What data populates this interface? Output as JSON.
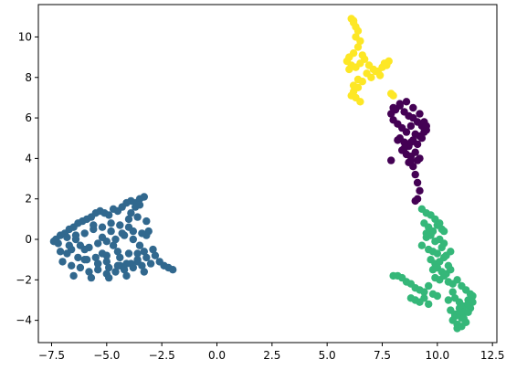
{
  "chart_data": {
    "type": "scatter",
    "title": "",
    "xlabel": "",
    "ylabel": "",
    "xlim": [
      -8.1,
      12.7
    ],
    "ylim": [
      -5.1,
      11.6
    ],
    "x_ticks": [
      -7.5,
      -5.0,
      -2.5,
      0.0,
      2.5,
      5.0,
      7.5,
      10.0,
      12.5
    ],
    "x_tick_labels": [
      "−7.5",
      "−5.0",
      "−2.5",
      "0.0",
      "2.5",
      "5.0",
      "7.5",
      "10.0",
      "12.5"
    ],
    "y_ticks": [
      -4,
      -2,
      0,
      2,
      4,
      6,
      8,
      10
    ],
    "y_tick_labels": [
      "−4",
      "−2",
      "0",
      "2",
      "4",
      "6",
      "8",
      "10"
    ],
    "grid": false,
    "legend": "none",
    "marker_size_pt": 6,
    "series": [
      {
        "color": "#31688e",
        "x": [
          -7.3,
          -7.1,
          -6.9,
          -6.7,
          -6.5,
          -6.3,
          -6.1,
          -5.9,
          -5.7,
          -5.5,
          -5.3,
          -5.1,
          -4.9,
          -4.7,
          -4.5,
          -4.3,
          -4.1,
          -3.9,
          -3.7,
          -3.5,
          -3.3,
          -3.1,
          -7.2,
          -6.8,
          -6.4,
          -6.0,
          -5.6,
          -5.2,
          -4.8,
          -4.4,
          -4.0,
          -3.6,
          -3.2,
          -6.6,
          -6.2,
          -5.8,
          -5.4,
          -5.0,
          -4.6,
          -4.2,
          -3.8,
          -3.4,
          -6.0,
          -5.5,
          -5.0,
          -4.5,
          -4.0,
          -3.5,
          -5.4,
          -4.9,
          -4.4,
          -3.9,
          -3.6,
          -3.3,
          -3.9,
          -3.7,
          -3.5,
          -7.0,
          -6.6,
          -6.2,
          -5.8,
          -5.4,
          -5.0,
          -4.6,
          -4.2,
          -3.8,
          -3.4,
          -3.0,
          -2.8,
          -2.6,
          -2.4,
          -2.2,
          -2.0,
          -6.8,
          -6.3,
          -5.9,
          -5.4,
          -5.0,
          -4.5,
          -4.1,
          -3.6,
          -3.2,
          -2.9,
          -7.4,
          -7.1,
          -6.7,
          -6.4,
          -6.0,
          -5.6,
          -5.2,
          -4.8,
          -4.4,
          -4.0,
          -3.6,
          -3.2,
          -6.5,
          -5.7,
          -4.9,
          -4.1,
          -3.3,
          -5.2,
          -4.7,
          -4.3,
          -3.8
        ],
        "y": [
          0.0,
          0.2,
          0.3,
          0.5,
          0.6,
          0.8,
          0.9,
          1.0,
          1.1,
          1.3,
          1.4,
          1.3,
          1.2,
          1.5,
          1.4,
          1.6,
          1.8,
          1.9,
          1.8,
          2.0,
          2.1,
          0.4,
          -0.2,
          0.1,
          0.0,
          0.3,
          0.5,
          0.6,
          0.8,
          0.7,
          1.0,
          1.1,
          0.2,
          -0.5,
          -0.3,
          -0.4,
          -0.2,
          -0.1,
          0.0,
          0.2,
          0.4,
          0.3,
          -1.0,
          -0.9,
          -0.8,
          -0.6,
          -0.7,
          -0.3,
          -1.2,
          -1.4,
          -1.3,
          -1.2,
          -1.0,
          -0.6,
          1.3,
          1.6,
          1.7,
          -1.1,
          -1.3,
          -1.4,
          -1.6,
          -1.5,
          -1.7,
          -1.6,
          -1.5,
          -1.4,
          -1.3,
          -1.2,
          -0.8,
          -1.1,
          -1.3,
          -1.4,
          -1.5,
          -0.7,
          -0.9,
          -1.0,
          -1.2,
          -1.1,
          -1.3,
          -1.2,
          -1.1,
          -0.9,
          -0.5,
          -0.1,
          -0.6,
          -0.3,
          0.2,
          -0.5,
          0.7,
          -0.7,
          0.4,
          -0.9,
          0.6,
          -0.7,
          0.9,
          -1.8,
          -1.9,
          -1.9,
          -1.8,
          -1.6,
          0.1,
          -0.3,
          0.3,
          0.0
        ]
      },
      {
        "color": "#440154",
        "x": [
          7.9,
          8.1,
          8.3,
          8.5,
          8.7,
          8.9,
          9.1,
          9.3,
          9.5,
          8.0,
          8.2,
          8.4,
          8.6,
          8.8,
          9.0,
          9.2,
          9.4,
          8.3,
          8.5,
          8.7,
          8.9,
          9.1,
          9.3,
          8.4,
          8.6,
          8.8,
          9.0,
          9.2,
          8.7,
          8.9,
          9.1,
          8.0,
          8.3,
          8.6,
          8.9,
          9.2,
          9.0,
          9.1,
          9.2,
          9.1,
          9.0,
          8.2,
          8.5,
          8.8,
          9.4,
          9.5,
          8.8,
          7.9
        ],
        "y": [
          6.2,
          6.4,
          6.6,
          6.3,
          6.1,
          6.0,
          5.8,
          5.6,
          5.4,
          5.9,
          5.7,
          5.5,
          5.3,
          5.6,
          5.2,
          5.1,
          5.3,
          5.0,
          4.8,
          4.6,
          4.9,
          4.7,
          5.0,
          4.4,
          4.2,
          4.1,
          4.3,
          4.0,
          3.8,
          3.6,
          3.9,
          6.5,
          6.7,
          6.8,
          6.5,
          6.2,
          3.2,
          2.8,
          2.4,
          2.0,
          1.9,
          4.9,
          4.5,
          3.9,
          5.8,
          5.6,
          4.8,
          3.9
        ]
      },
      {
        "color": "#35b779",
        "x": [
          9.3,
          9.5,
          9.7,
          9.9,
          10.1,
          9.4,
          9.6,
          9.8,
          10.0,
          10.2,
          9.5,
          9.7,
          9.9,
          10.1,
          10.3,
          9.6,
          9.8,
          10.0,
          10.2,
          10.4,
          9.7,
          9.9,
          10.1,
          10.3,
          10.5,
          9.8,
          10.0,
          10.2,
          10.4,
          10.6,
          9.9,
          10.1,
          10.3,
          10.5,
          10.7,
          10.9,
          11.1,
          11.3,
          11.5,
          8.8,
          9.0,
          9.2,
          9.4,
          9.6,
          9.8,
          10.0,
          8.2,
          8.4,
          8.6,
          8.8,
          9.0,
          9.2,
          9.4,
          9.6,
          10.8,
          11.0,
          11.2,
          11.4,
          11.6,
          10.6,
          10.8,
          11.0,
          11.2,
          11.4,
          10.7,
          10.9,
          11.1,
          11.3,
          10.9,
          11.1,
          10.8,
          11.0,
          11.2,
          10.5,
          10.7,
          11.5,
          11.6,
          11.4,
          8.0,
          9.3,
          9.5,
          10.3,
          10.6
        ],
        "y": [
          1.5,
          1.3,
          1.2,
          1.0,
          0.8,
          0.8,
          0.6,
          0.4,
          0.7,
          0.5,
          0.1,
          0.2,
          -0.1,
          0.0,
          -0.2,
          -0.5,
          -0.6,
          -0.7,
          -0.4,
          -0.8,
          -1.0,
          -1.2,
          -1.1,
          -0.9,
          -1.3,
          -1.5,
          -1.4,
          -1.6,
          -1.7,
          -1.5,
          -1.9,
          -2.0,
          -1.8,
          -2.1,
          -2.2,
          -2.0,
          -2.3,
          -2.5,
          -2.7,
          -2.2,
          -2.4,
          -2.5,
          -2.6,
          -2.3,
          -2.7,
          -2.8,
          -1.8,
          -1.9,
          -2.1,
          -2.9,
          -3.0,
          -3.1,
          -2.9,
          -3.2,
          -2.9,
          -3.1,
          -3.3,
          -3.0,
          -2.8,
          -3.5,
          -3.7,
          -3.4,
          -3.6,
          -3.2,
          -4.0,
          -4.2,
          -3.9,
          -4.1,
          -4.4,
          -4.3,
          -3.8,
          -3.6,
          -3.9,
          -3.0,
          -2.6,
          -3.4,
          -3.1,
          -3.6,
          -1.8,
          -0.3,
          0.3,
          0.4,
          -0.6
        ]
      },
      {
        "color": "#fde725",
        "x": [
          6.1,
          6.2,
          6.3,
          6.2,
          6.4,
          6.3,
          6.5,
          6.4,
          6.2,
          6.0,
          5.9,
          6.1,
          6.3,
          6.5,
          6.7,
          6.9,
          7.1,
          7.3,
          7.5,
          7.6,
          7.8,
          6.8,
          7.0,
          7.2,
          7.4,
          6.6,
          6.4,
          6.2,
          6.1,
          6.3,
          6.5,
          6.2,
          6.4,
          7.9,
          8.0,
          6.0,
          6.6,
          7.7
        ],
        "y": [
          10.9,
          10.7,
          10.5,
          10.8,
          10.3,
          10.0,
          9.8,
          9.5,
          9.2,
          9.0,
          8.8,
          8.6,
          8.5,
          8.7,
          8.9,
          8.6,
          8.4,
          8.3,
          8.5,
          8.7,
          8.8,
          8.2,
          8.0,
          8.3,
          8.1,
          7.8,
          7.5,
          7.3,
          7.1,
          7.0,
          6.8,
          7.6,
          7.9,
          7.2,
          7.1,
          8.4,
          9.1,
          8.6
        ]
      }
    ]
  }
}
